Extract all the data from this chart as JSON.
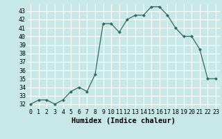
{
  "x": [
    0,
    1,
    2,
    3,
    4,
    5,
    6,
    7,
    8,
    9,
    10,
    11,
    12,
    13,
    14,
    15,
    16,
    17,
    18,
    19,
    20,
    21,
    22,
    23
  ],
  "y": [
    32,
    32.5,
    32.5,
    32,
    32.5,
    33.5,
    34,
    33.5,
    35.5,
    41.5,
    41.5,
    40.5,
    42,
    42.5,
    42.5,
    43.5,
    43.5,
    42.5,
    41,
    40,
    40,
    38.5,
    35,
    35
  ],
  "line_color": "#2e6b5e",
  "marker_color": "#2e6b5e",
  "bg_color": "#c8e8e8",
  "grid_color": "#ffffff",
  "xlabel": "Humidex (Indice chaleur)",
  "xlim": [
    -0.5,
    23.5
  ],
  "ylim": [
    31.5,
    43.8
  ],
  "yticks": [
    32,
    33,
    34,
    35,
    36,
    37,
    38,
    39,
    40,
    41,
    42,
    43
  ],
  "xticks": [
    0,
    1,
    2,
    3,
    4,
    5,
    6,
    7,
    8,
    9,
    10,
    11,
    12,
    13,
    14,
    15,
    16,
    17,
    18,
    19,
    20,
    21,
    22,
    23
  ],
  "tick_fontsize": 6,
  "xlabel_fontsize": 7.5
}
